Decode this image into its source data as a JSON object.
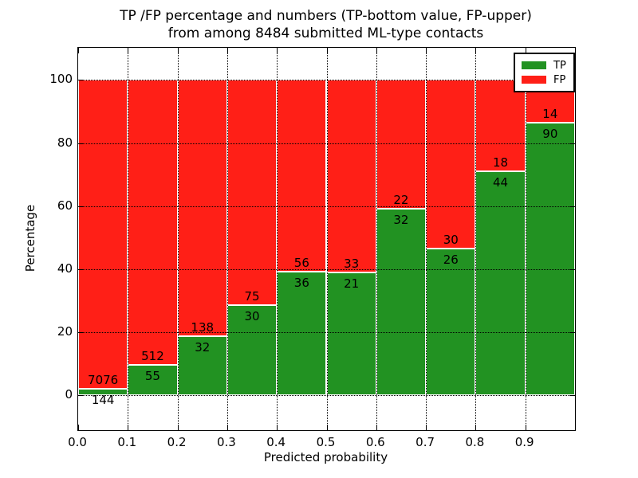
{
  "figure": {
    "title_line1": "TP /FP percentage and numbers (TP-bottom value, FP-upper)",
    "title_line2": "from among 8484 submitted ML-type contacts",
    "xlabel": "Predicted probability",
    "ylabel": "Percentage"
  },
  "legend": {
    "position": "upper right",
    "entries": [
      {
        "label": "TP",
        "color": "#229222"
      },
      {
        "label": "FP",
        "color": "#ff1f17"
      }
    ]
  },
  "chart_data": {
    "type": "bar",
    "stacked": true,
    "normalized": "each bar sums to 100 percent",
    "title": "TP /FP percentage and numbers (TP-bottom value, FP-upper) from among 8484 submitted ML-type contacts",
    "xlabel": "Predicted probability",
    "ylabel": "Percentage",
    "total_contacts": 8484,
    "bin_width": 0.1,
    "x_bins": [
      0.0,
      0.1,
      0.2,
      0.3,
      0.4,
      0.5,
      0.6,
      0.7,
      0.8,
      0.9
    ],
    "x_ticks": [
      "0.0",
      "0.1",
      "0.2",
      "0.3",
      "0.4",
      "0.5",
      "0.6",
      "0.7",
      "0.8",
      "0.9"
    ],
    "y_ticks": [
      0,
      20,
      40,
      60,
      80,
      100
    ],
    "xlim": [
      0.0,
      1.0
    ],
    "ylim": [
      -11.1,
      110.2
    ],
    "grid": true,
    "gridstyle": "dotted",
    "series": [
      {
        "name": "TP",
        "color": "#229222",
        "counts": [
          144,
          55,
          32,
          30,
          36,
          21,
          32,
          26,
          44,
          90
        ],
        "percent": [
          1.99,
          9.7,
          18.82,
          28.57,
          39.13,
          38.89,
          59.26,
          46.43,
          70.97,
          86.54
        ]
      },
      {
        "name": "FP",
        "color": "#ff1f17",
        "counts": [
          7076,
          512,
          138,
          75,
          56,
          33,
          22,
          30,
          18,
          14
        ],
        "percent": [
          98.01,
          90.3,
          81.18,
          71.43,
          60.87,
          61.11,
          40.74,
          53.57,
          29.03,
          13.46
        ]
      }
    ],
    "bar_edge_color": "#ffffff",
    "annotation_rule": "FP count printed just above the TP/FP boundary, TP count just below it"
  }
}
